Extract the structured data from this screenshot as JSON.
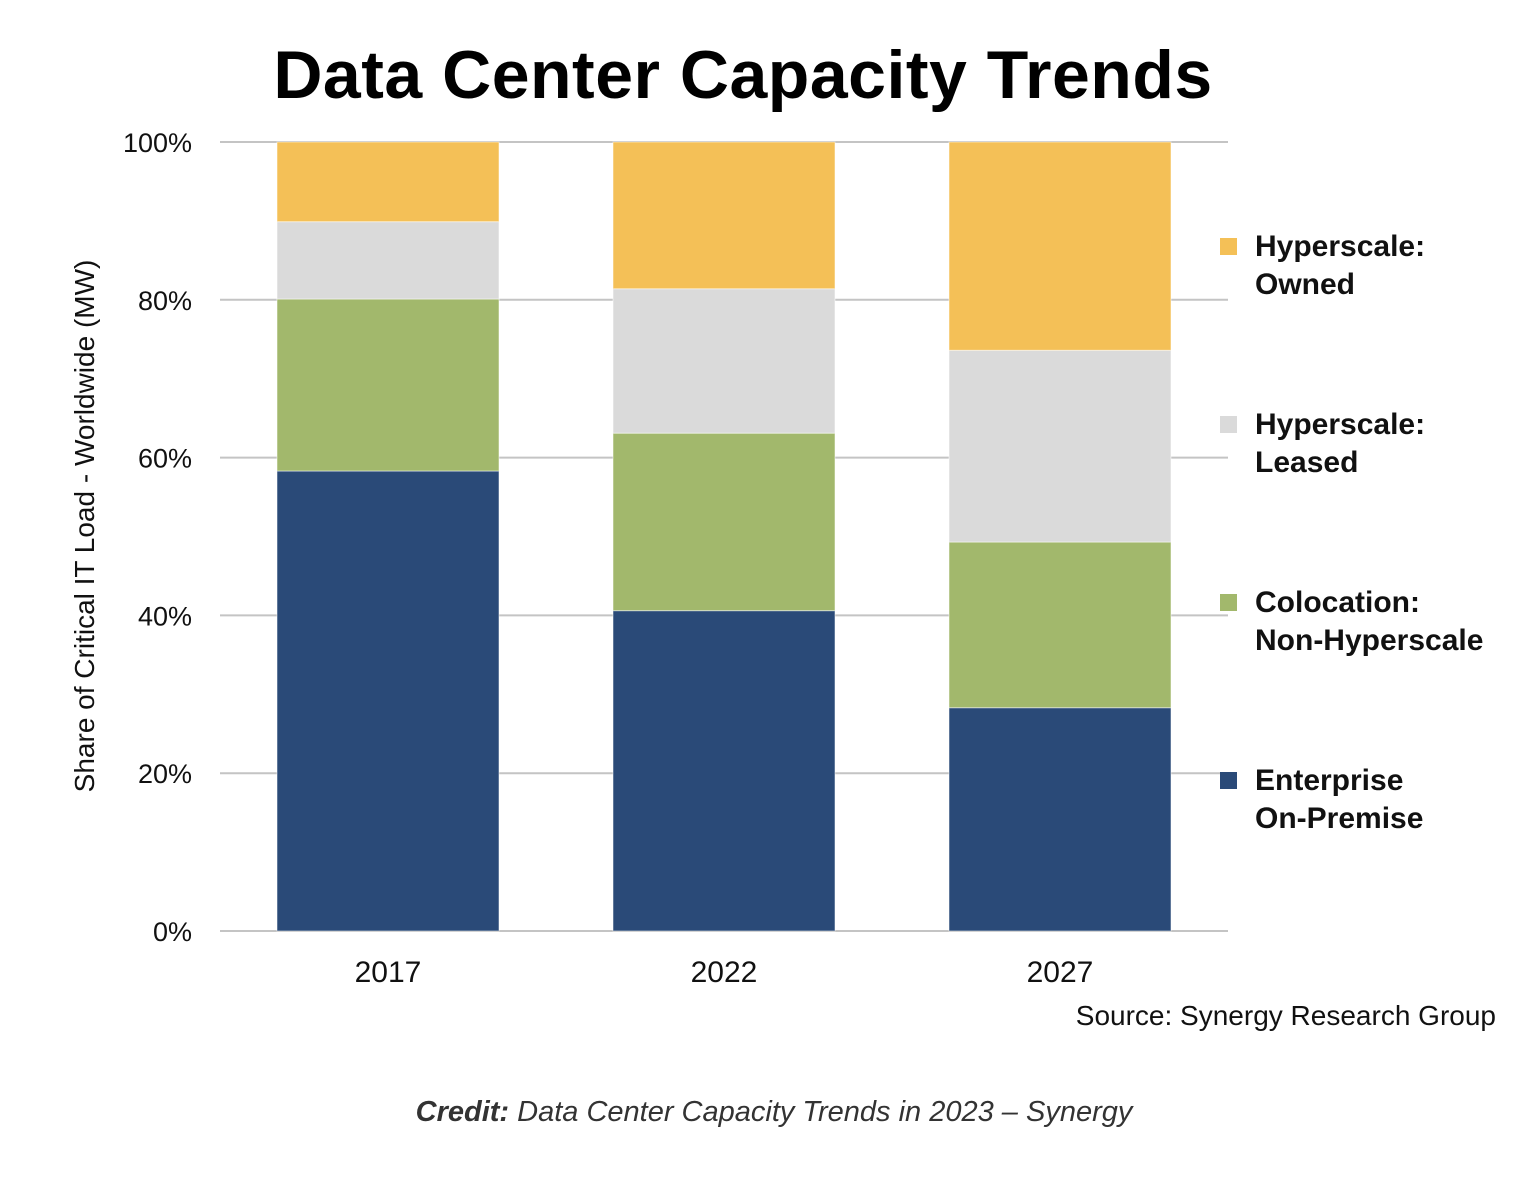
{
  "chart_data": {
    "type": "bar",
    "stacked": true,
    "title": "Data Center Capacity Trends",
    "ylabel": "Share of Critical IT Load - Worldwide (MW)",
    "xlabel": "",
    "ylim": [
      0,
      100
    ],
    "yticks": [
      "0%",
      "20%",
      "40%",
      "60%",
      "80%",
      "100%"
    ],
    "ytick_values": [
      0,
      20,
      40,
      60,
      80,
      100
    ],
    "grid": true,
    "legend_position": "right",
    "categories": [
      "2017",
      "2022",
      "2027"
    ],
    "series": [
      {
        "name": "Enterprise\nOn-Premise",
        "color": "#2a4a78",
        "values": [
          58.3,
          40.6,
          28.3
        ]
      },
      {
        "name": "Colocation:\nNon-Hyperscale",
        "color": "#a2b86c",
        "values": [
          21.8,
          22.5,
          21.0
        ]
      },
      {
        "name": "Hyperscale:\nLeased",
        "color": "#dadada",
        "values": [
          9.8,
          18.3,
          24.3
        ]
      },
      {
        "name": "Hyperscale:\nOwned",
        "color": "#f4c057",
        "values": [
          10.1,
          18.6,
          26.4
        ]
      }
    ],
    "source": "Source: Synergy Research Group"
  },
  "caption": {
    "credit_label": "Credit:",
    "text": " Data Center Capacity Trends in 2023 – Synergy"
  }
}
